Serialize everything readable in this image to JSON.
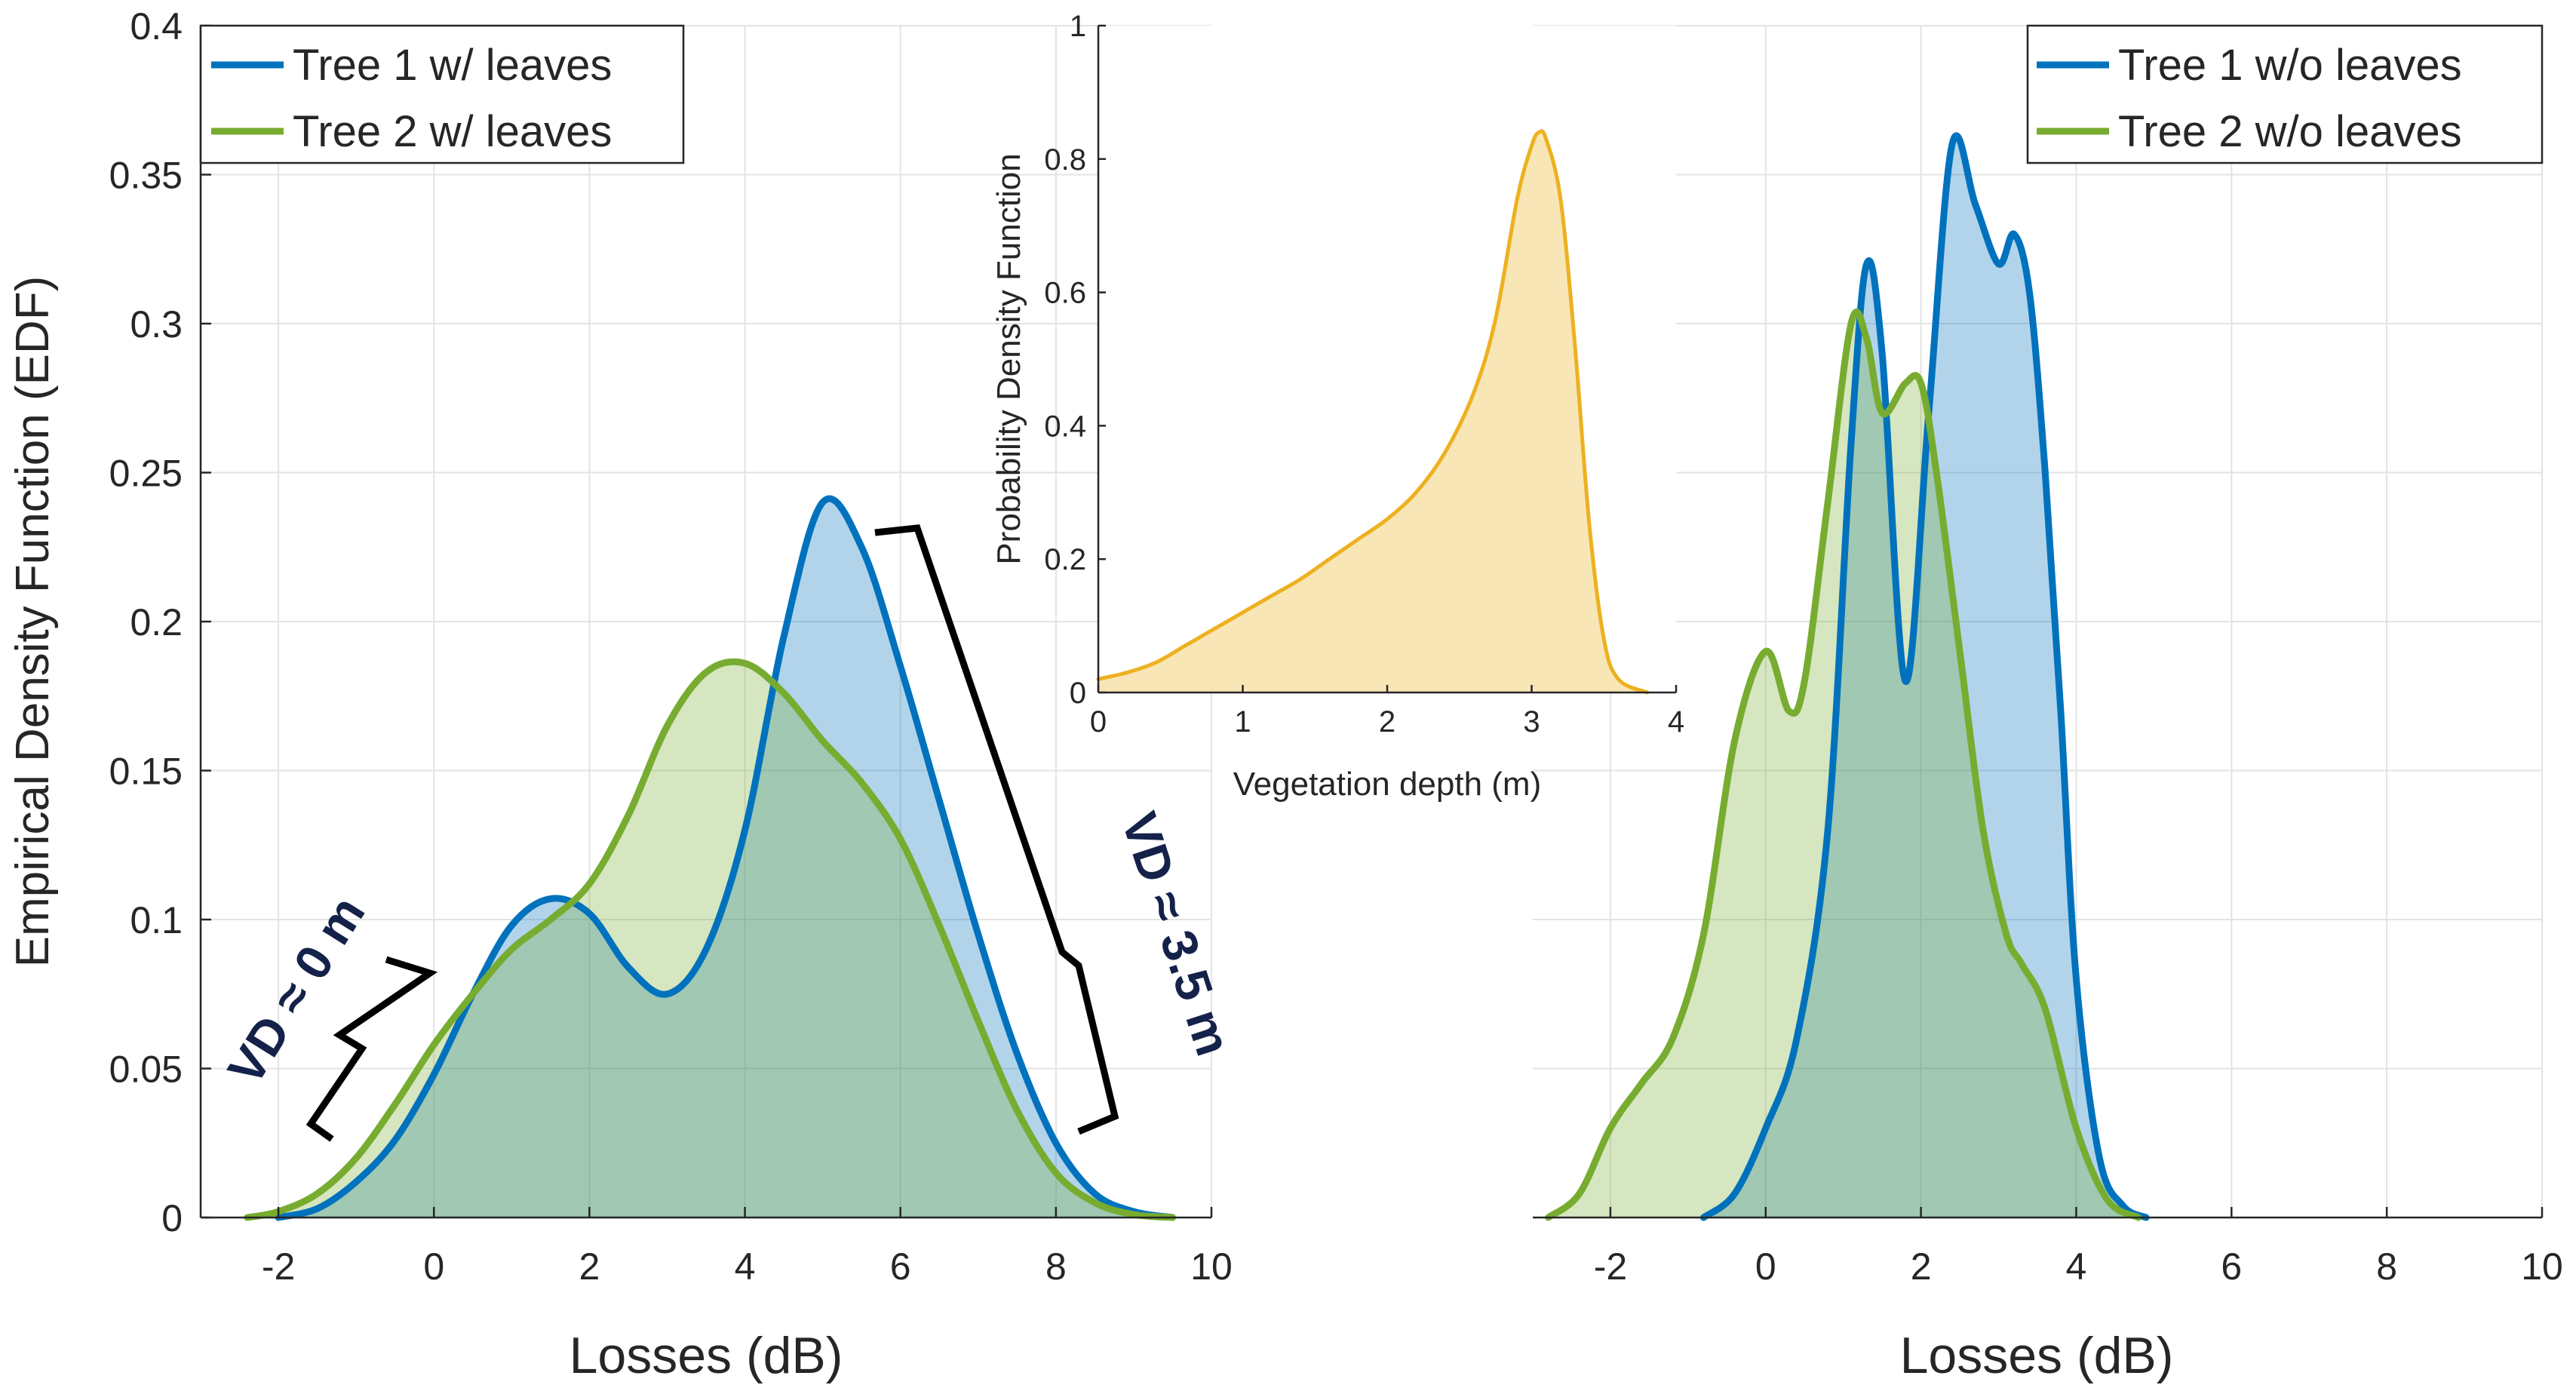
{
  "colors": {
    "series_blue": "#0072BD",
    "series_green": "#77AC30",
    "inset_yellow": "#EDB120",
    "text": "#262626",
    "annotation": "#14224a"
  },
  "chart_data": [
    {
      "id": "left",
      "type": "area",
      "xlabel": "Losses (dB)",
      "ylabel": "Empirical Density Function (EDF)",
      "xlim": [
        -3,
        10
      ],
      "ylim": [
        0,
        0.4
      ],
      "xticks": [
        -2,
        0,
        2,
        4,
        6,
        8,
        10
      ],
      "yticks": [
        0,
        0.05,
        0.1,
        0.15,
        0.2,
        0.25,
        0.3,
        0.35,
        0.4
      ],
      "grid": true,
      "legend_position": "top-left",
      "series": [
        {
          "name": "Tree 1 w/ leaves",
          "color_key": "series_blue",
          "x": [
            -2,
            -1.5,
            -1,
            -0.5,
            0,
            0.5,
            1,
            1.5,
            2,
            2.5,
            3,
            3.5,
            4,
            4.5,
            5,
            5.5,
            6,
            6.5,
            7,
            7.5,
            8,
            8.5,
            9,
            9.5
          ],
          "y": [
            0.0,
            0.003,
            0.012,
            0.026,
            0.048,
            0.075,
            0.098,
            0.107,
            0.102,
            0.084,
            0.075,
            0.09,
            0.13,
            0.195,
            0.24,
            0.225,
            0.185,
            0.14,
            0.095,
            0.055,
            0.025,
            0.008,
            0.002,
            0.0
          ]
        },
        {
          "name": "Tree 2 w/ leaves",
          "color_key": "series_green",
          "x": [
            -2.4,
            -2,
            -1.5,
            -1,
            -0.5,
            0,
            0.5,
            1,
            1.5,
            2,
            2.5,
            3,
            3.5,
            4,
            4.5,
            5,
            5.5,
            6,
            6.5,
            7,
            7.5,
            8,
            8.5,
            9,
            9.5
          ],
          "y": [
            0.0,
            0.002,
            0.008,
            0.02,
            0.038,
            0.058,
            0.075,
            0.09,
            0.1,
            0.112,
            0.135,
            0.165,
            0.183,
            0.186,
            0.176,
            0.16,
            0.146,
            0.127,
            0.098,
            0.066,
            0.036,
            0.015,
            0.005,
            0.001,
            0.0
          ]
        }
      ],
      "annotations": [
        {
          "text": "VD ≈ 0 m",
          "x": -1.2,
          "y": 0.055
        },
        {
          "text": "VD ≈ 3.5 m",
          "x": 9.4,
          "y": 0.1
        }
      ]
    },
    {
      "id": "right",
      "type": "area",
      "xlabel": "Losses (dB)",
      "xlim": [
        -3,
        10
      ],
      "ylim": [
        0,
        0.4
      ],
      "xticks": [
        -2,
        0,
        2,
        4,
        6,
        8,
        10
      ],
      "grid": true,
      "legend_position": "top-right",
      "series": [
        {
          "name": "Tree 1 w/o leaves",
          "color_key": "series_blue",
          "x": [
            -0.8,
            -0.4,
            0,
            0.4,
            0.8,
            1.1,
            1.3,
            1.5,
            1.8,
            2.1,
            2.4,
            2.7,
            3.0,
            3.2,
            3.4,
            3.6,
            3.8,
            4.0,
            4.3,
            4.6,
            4.9
          ],
          "y": [
            0.0,
            0.008,
            0.03,
            0.06,
            0.13,
            0.26,
            0.32,
            0.29,
            0.18,
            0.27,
            0.36,
            0.34,
            0.32,
            0.33,
            0.31,
            0.25,
            0.17,
            0.08,
            0.02,
            0.004,
            0.0
          ]
        },
        {
          "name": "Tree 2 w/o leaves",
          "color_key": "series_green",
          "x": [
            -2.8,
            -2.4,
            -2,
            -1.6,
            -1.2,
            -0.8,
            -0.4,
            0,
            0.3,
            0.5,
            0.8,
            1.1,
            1.3,
            1.5,
            1.8,
            2.0,
            2.2,
            2.5,
            2.8,
            3.1,
            3.3,
            3.6,
            4.0,
            4.4,
            4.8
          ],
          "y": [
            0.0,
            0.008,
            0.03,
            0.045,
            0.06,
            0.095,
            0.16,
            0.19,
            0.17,
            0.18,
            0.24,
            0.3,
            0.295,
            0.27,
            0.28,
            0.28,
            0.25,
            0.19,
            0.13,
            0.095,
            0.085,
            0.07,
            0.03,
            0.006,
            0.0
          ]
        }
      ]
    },
    {
      "id": "inset",
      "type": "area",
      "xlabel": "Vegetation depth (m)",
      "ylabel": "Probability Density Function",
      "xlim": [
        0,
        4
      ],
      "ylim": [
        0,
        1
      ],
      "xticks": [
        0,
        1,
        2,
        3,
        4
      ],
      "yticks": [
        0,
        0.2,
        0.4,
        0.6,
        0.8,
        1
      ],
      "ytick_labels": [
        "0",
        "0.2",
        "0.4",
        "0.6",
        "0.8",
        "1"
      ],
      "grid": false,
      "series": [
        {
          "name": "Vegetation depth",
          "color_key": "inset_yellow",
          "x": [
            0,
            0.2,
            0.4,
            0.6,
            0.8,
            1.0,
            1.2,
            1.4,
            1.6,
            1.8,
            2.0,
            2.2,
            2.4,
            2.6,
            2.75,
            2.9,
            3.0,
            3.05,
            3.1,
            3.2,
            3.3,
            3.4,
            3.5,
            3.6,
            3.8
          ],
          "y": [
            0.02,
            0.03,
            0.045,
            0.07,
            0.095,
            0.12,
            0.145,
            0.17,
            0.2,
            0.23,
            0.26,
            0.3,
            0.36,
            0.45,
            0.56,
            0.74,
            0.82,
            0.84,
            0.83,
            0.74,
            0.52,
            0.25,
            0.08,
            0.02,
            0.0
          ]
        }
      ]
    }
  ]
}
